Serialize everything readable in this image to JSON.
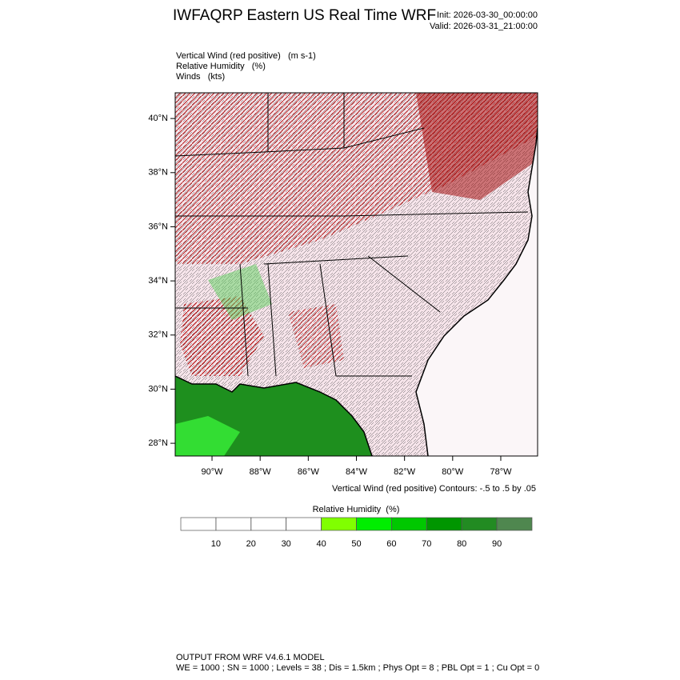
{
  "header": {
    "title": "IWFAQRP Eastern US Real Time WRF",
    "init": "Init: 2026-03-30_00:00:00",
    "valid": "Valid: 2026-03-31_21:00:00"
  },
  "fields": [
    "Vertical Wind (red positive)   (m s-1)",
    "Relative Humidity   (%)",
    "Winds   (kts)"
  ],
  "map": {
    "lat_lim": [
      27.53,
      40.95
    ],
    "lon_lim": [
      -91.53,
      -76.47
    ],
    "lat_ticks": [
      {
        "value": 40,
        "label": "40°N"
      },
      {
        "value": 38,
        "label": "38°N"
      },
      {
        "value": 36,
        "label": "36°N"
      },
      {
        "value": 34,
        "label": "34°N"
      },
      {
        "value": 32,
        "label": "32°N"
      },
      {
        "value": 30,
        "label": "30°N"
      },
      {
        "value": 28,
        "label": "28°N"
      }
    ],
    "lon_ticks": [
      {
        "value": -90,
        "label": "90°W"
      },
      {
        "value": -88,
        "label": "88°W"
      },
      {
        "value": -86,
        "label": "86°W"
      },
      {
        "value": -84,
        "label": "84°W"
      },
      {
        "value": -82,
        "label": "82°W"
      },
      {
        "value": -80,
        "label": "80°W"
      },
      {
        "value": -78,
        "label": "78°W"
      }
    ]
  },
  "contour_note": "Vertical Wind (red positive) Contours: -.5 to .5 by .05",
  "colorbar": {
    "title": "Relative Humidity  (%)",
    "lim": [
      0,
      100
    ],
    "ticks": [
      10,
      20,
      30,
      40,
      50,
      60,
      70,
      80,
      90
    ],
    "colors": [
      "#ffffff",
      "#ffffff",
      "#ffffff",
      "#ffffff",
      "#80ff00",
      "#00ee00",
      "#00c800",
      "#009600",
      "#228b22",
      "#4f874f"
    ]
  },
  "footer": [
    "OUTPUT FROM WRF V4.6.1 MODEL",
    "WE = 1000 ; SN = 1000 ; Levels = 38 ; Dis = 1.5km ; Phys Opt = 8 ; PBL Opt = 1 ; Cu Opt = 0"
  ]
}
